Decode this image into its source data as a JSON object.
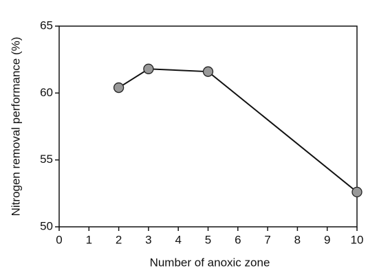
{
  "chart_data": {
    "type": "line",
    "x_label": "Number of anoxic zone",
    "y_label": "Nitrogen removal performance (%)",
    "series": [
      {
        "x": [
          2,
          3,
          5,
          10
        ],
        "values": [
          60.4,
          61.8,
          61.6,
          52.6
        ],
        "color": "#111111",
        "marker_color": "#999999"
      }
    ],
    "xlim": [
      0,
      10
    ],
    "xticks": [
      0,
      1,
      2,
      3,
      4,
      5,
      6,
      7,
      8,
      9,
      10
    ],
    "ylim": [
      50,
      65
    ],
    "yticks": [
      50,
      55,
      60,
      65
    ]
  }
}
